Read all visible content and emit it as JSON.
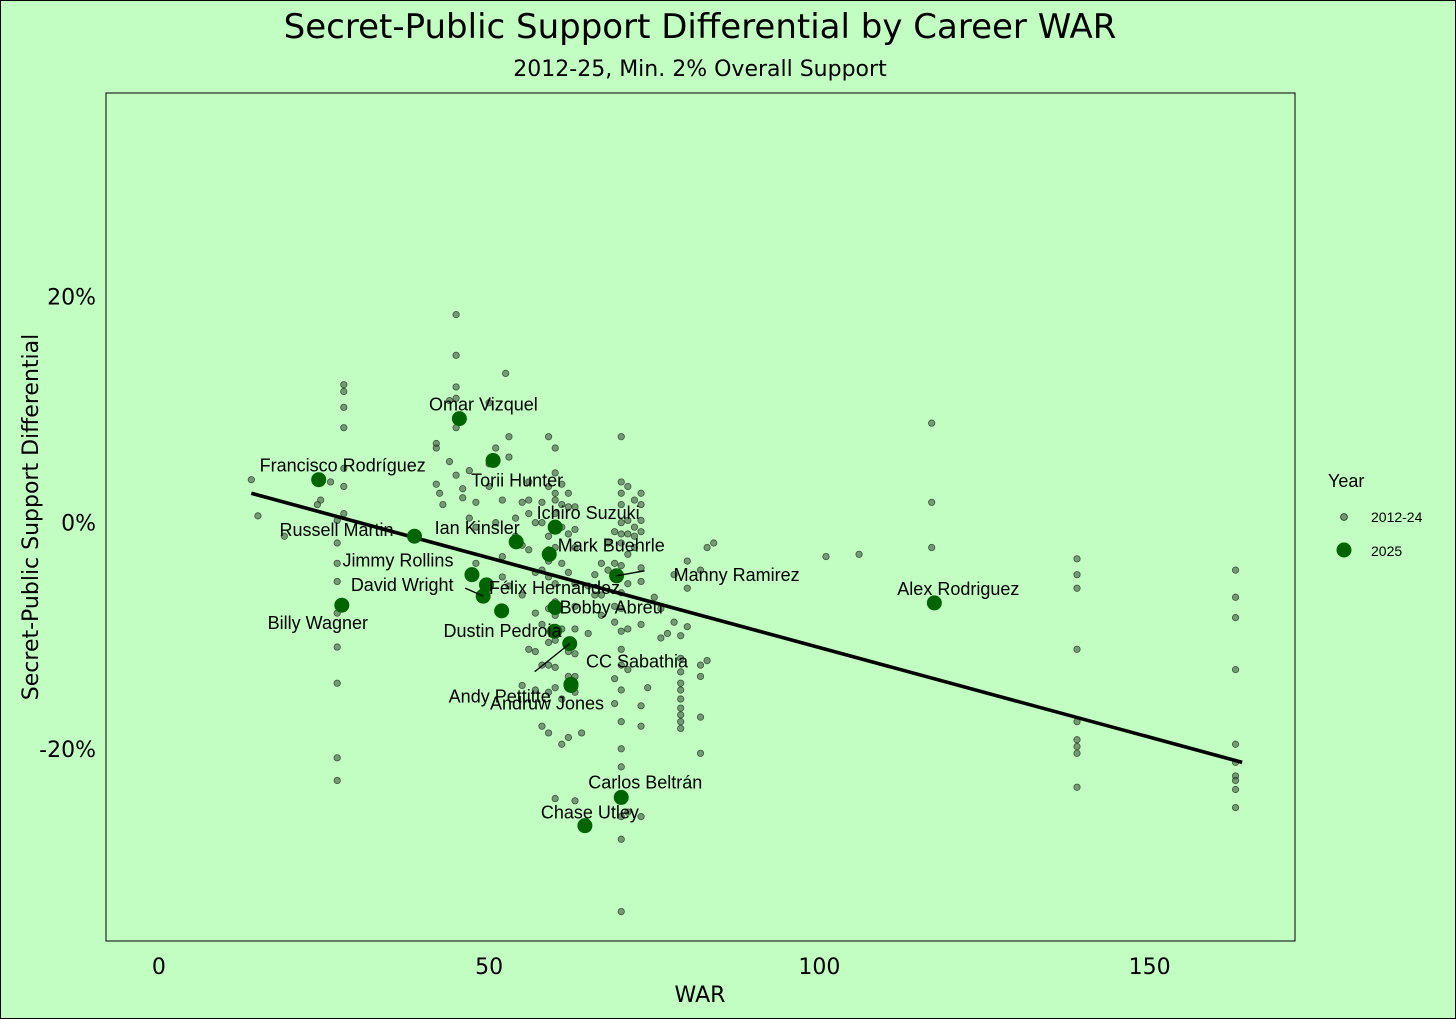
{
  "chart_data": {
    "type": "scatter",
    "title": "Secret-Public Support Differential by Career WAR",
    "subtitle": "2012-25, Min. 2% Overall Support",
    "xlabel": "WAR",
    "ylabel": "Secret-Public Support Differential",
    "xlim": [
      -8,
      172
    ],
    "ylim": [
      -37,
      38
    ],
    "x_ticks": [
      0,
      50,
      100,
      150
    ],
    "x_tick_labels": [
      "0",
      "50",
      "100",
      "150"
    ],
    "y_ticks": [
      20,
      0,
      -20
    ],
    "y_tick_labels": [
      "20%",
      "0%",
      "-20%"
    ],
    "grid": false,
    "legend": {
      "title": "Year",
      "position": "right",
      "entries": [
        "2012-24",
        "2025"
      ]
    },
    "trend_line": {
      "x": [
        14,
        164
      ],
      "y": [
        2.6,
        -21.2
      ]
    },
    "series": [
      {
        "name": "2012-24",
        "color": "#3a5a3a",
        "points": [
          [
            14,
            3.8
          ],
          [
            15,
            0.6
          ],
          [
            19,
            -1.2
          ],
          [
            24,
            1.6
          ],
          [
            24.5,
            2
          ],
          [
            26,
            3.6
          ],
          [
            27,
            0.2
          ],
          [
            27,
            -1.8
          ],
          [
            27,
            -3.6
          ],
          [
            27,
            -5.2
          ],
          [
            27,
            -8
          ],
          [
            27,
            -11
          ],
          [
            27,
            -14.2
          ],
          [
            27,
            -20.8
          ],
          [
            27,
            -22.8
          ],
          [
            28,
            12.2
          ],
          [
            28,
            11.6
          ],
          [
            28,
            10.2
          ],
          [
            28,
            8.4
          ],
          [
            28,
            4.8
          ],
          [
            28,
            3.2
          ],
          [
            28,
            0.8
          ],
          [
            42,
            7
          ],
          [
            42,
            6.6
          ],
          [
            42,
            3.4
          ],
          [
            42.5,
            2.6
          ],
          [
            43,
            1.6
          ],
          [
            44,
            10.8
          ],
          [
            44,
            5.4
          ],
          [
            45,
            18.4
          ],
          [
            45,
            14.8
          ],
          [
            45,
            12
          ],
          [
            45,
            11
          ],
          [
            45,
            8.4
          ],
          [
            45,
            4.2
          ],
          [
            46,
            3
          ],
          [
            46,
            2.2
          ],
          [
            47,
            0.4
          ],
          [
            47,
            4.6
          ],
          [
            48,
            1.8
          ],
          [
            48,
            -0.4
          ],
          [
            48,
            -3.6
          ],
          [
            50,
            10.6
          ],
          [
            50,
            5.2
          ],
          [
            50,
            3.2
          ],
          [
            51,
            6.6
          ],
          [
            51,
            0
          ],
          [
            52,
            2
          ],
          [
            52,
            -3
          ],
          [
            52,
            -4.8
          ],
          [
            52.5,
            13.2
          ],
          [
            53,
            7.6
          ],
          [
            53,
            5.8
          ],
          [
            53,
            -5.6
          ],
          [
            54,
            0.4
          ],
          [
            54,
            -1.2
          ],
          [
            55,
            1.8
          ],
          [
            55,
            -2
          ],
          [
            55,
            -6.4
          ],
          [
            55,
            -14.4
          ],
          [
            56,
            3.6
          ],
          [
            56,
            2
          ],
          [
            56,
            0.8
          ],
          [
            56,
            -2.4
          ],
          [
            56,
            -11.2
          ],
          [
            57,
            0
          ],
          [
            57,
            -4.4
          ],
          [
            57,
            -8
          ],
          [
            57,
            -11.4
          ],
          [
            57,
            -14.8
          ],
          [
            58,
            1.8
          ],
          [
            58,
            0
          ],
          [
            58,
            -4.2
          ],
          [
            58,
            -9
          ],
          [
            58,
            -12.6
          ],
          [
            58,
            -18
          ],
          [
            59,
            7.6
          ],
          [
            59,
            3.2
          ],
          [
            59,
            -1.2
          ],
          [
            59,
            -2.4
          ],
          [
            59,
            -3.4
          ],
          [
            59,
            -4.8
          ],
          [
            59,
            -7.6
          ],
          [
            59,
            -10.6
          ],
          [
            59,
            -12.6
          ],
          [
            59,
            -15
          ],
          [
            59,
            -18.6
          ],
          [
            60,
            6.6
          ],
          [
            60,
            4.4
          ],
          [
            60,
            2.6
          ],
          [
            60,
            2
          ],
          [
            60,
            0.8
          ],
          [
            60,
            -2.2
          ],
          [
            60,
            -5.4
          ],
          [
            60,
            -7
          ],
          [
            60,
            -8.2
          ],
          [
            60,
            -10.4
          ],
          [
            60,
            -12.8
          ],
          [
            60,
            -14.6
          ],
          [
            60,
            -24.4
          ],
          [
            61,
            3.4
          ],
          [
            61,
            1.6
          ],
          [
            61,
            -0.4
          ],
          [
            61,
            -3.6
          ],
          [
            61,
            -9.4
          ],
          [
            61,
            -15.6
          ],
          [
            61,
            -19.6
          ],
          [
            62,
            2.6
          ],
          [
            62,
            1.4
          ],
          [
            62,
            -1
          ],
          [
            62,
            -4.4
          ],
          [
            62,
            -11.4
          ],
          [
            62,
            -13.6
          ],
          [
            62,
            -19
          ],
          [
            63,
            1.4
          ],
          [
            63,
            -0.6
          ],
          [
            63,
            -2.2
          ],
          [
            63,
            -5.4
          ],
          [
            63,
            -7.4
          ],
          [
            63,
            -9.4
          ],
          [
            63,
            -11.6
          ],
          [
            63,
            -13.6
          ],
          [
            63,
            -15
          ],
          [
            63,
            -24.6
          ],
          [
            64,
            -18.6
          ],
          [
            65,
            -5.6
          ],
          [
            65,
            -9.8
          ],
          [
            66,
            -4.6
          ],
          [
            66,
            -6.4
          ],
          [
            67,
            -3.6
          ],
          [
            67,
            -6.4
          ],
          [
            67,
            -8.2
          ],
          [
            68,
            -1.8
          ],
          [
            68,
            -4.2
          ],
          [
            69,
            -0.8
          ],
          [
            69,
            -3.6
          ],
          [
            69,
            -7.4
          ],
          [
            69,
            -8.8
          ],
          [
            69,
            -13.8
          ],
          [
            69,
            -16
          ],
          [
            70,
            7.6
          ],
          [
            70,
            3.6
          ],
          [
            70,
            2.6
          ],
          [
            70,
            1.6
          ],
          [
            70,
            0
          ],
          [
            70,
            -1
          ],
          [
            70,
            -1.8
          ],
          [
            70,
            -3.8
          ],
          [
            70,
            -6.2
          ],
          [
            70,
            -7.6
          ],
          [
            70,
            -9.6
          ],
          [
            70,
            -11.2
          ],
          [
            70,
            -12.6
          ],
          [
            70,
            -14.8
          ],
          [
            70,
            -17.6
          ],
          [
            70,
            -20
          ],
          [
            70,
            -21.6
          ],
          [
            70,
            -26
          ],
          [
            70,
            -28
          ],
          [
            70,
            -34.4
          ],
          [
            71,
            3.2
          ],
          [
            71,
            0.2
          ],
          [
            71,
            -1
          ],
          [
            71,
            -2.8
          ],
          [
            71,
            -5.4
          ],
          [
            71,
            -9.4
          ],
          [
            71,
            -13
          ],
          [
            71,
            -25.6
          ],
          [
            72,
            2
          ],
          [
            72,
            -0.4
          ],
          [
            72,
            -1.2
          ],
          [
            72,
            -2.2
          ],
          [
            73,
            2.6
          ],
          [
            73,
            1.6
          ],
          [
            73,
            0.2
          ],
          [
            73,
            -0.8
          ],
          [
            73,
            -4
          ],
          [
            73,
            -5.2
          ],
          [
            73,
            -9
          ],
          [
            73,
            -16.2
          ],
          [
            73,
            -18
          ],
          [
            73,
            -26
          ],
          [
            74,
            -14.6
          ],
          [
            75,
            -6.6
          ],
          [
            76,
            -7.6
          ],
          [
            76,
            -10.2
          ],
          [
            77,
            -9.8
          ],
          [
            78,
            -4.6
          ],
          [
            78,
            -8.8
          ],
          [
            79,
            -10
          ],
          [
            79,
            -12
          ],
          [
            79,
            -13.2
          ],
          [
            79,
            -14.2
          ],
          [
            79,
            -14.8
          ],
          [
            79,
            -15.6
          ],
          [
            79,
            -16.4
          ],
          [
            79,
            -17
          ],
          [
            79,
            -17.6
          ],
          [
            79,
            -18.2
          ],
          [
            80,
            -3.4
          ],
          [
            80,
            -5.8
          ],
          [
            80,
            -9.2
          ],
          [
            82,
            -4.2
          ],
          [
            82,
            -12.6
          ],
          [
            82,
            -13.6
          ],
          [
            82,
            -17.2
          ],
          [
            82,
            -20.4
          ],
          [
            83,
            -2.2
          ],
          [
            83,
            -12.2
          ],
          [
            84,
            -1.8
          ],
          [
            101,
            -3
          ],
          [
            106,
            -2.8
          ],
          [
            117,
            8.8
          ],
          [
            117,
            1.8
          ],
          [
            117,
            -2.2
          ],
          [
            139,
            -3.2
          ],
          [
            139,
            -4.6
          ],
          [
            139,
            -5.8
          ],
          [
            139,
            -11.2
          ],
          [
            139,
            -17.6
          ],
          [
            139,
            -19.2
          ],
          [
            139,
            -19.8
          ],
          [
            139,
            -20.4
          ],
          [
            139,
            -23.4
          ],
          [
            163,
            -4.2
          ],
          [
            163,
            -6.6
          ],
          [
            163,
            -8.4
          ],
          [
            163,
            -13
          ],
          [
            163,
            -19.6
          ],
          [
            163,
            -21.2
          ],
          [
            163,
            -22.4
          ],
          [
            163,
            -22.8
          ],
          [
            163,
            -23.6
          ],
          [
            163,
            -25.2
          ]
        ]
      },
      {
        "name": "2025",
        "color": "#006400",
        "points": [
          {
            "label": "Omar Vizquel",
            "x": 45.5,
            "y": 9.2
          },
          {
            "label": "Francisco Rodríguez",
            "x": 24.2,
            "y": 3.8
          },
          {
            "label": "Torii Hunter",
            "x": 50.6,
            "y": 5.5
          },
          {
            "label": "Ichiro Suzuki",
            "x": 60,
            "y": -0.4
          },
          {
            "label": "Russell Martin",
            "x": 38.7,
            "y": -1.2
          },
          {
            "label": "Ian Kinsler",
            "x": 54.1,
            "y": -1.7
          },
          {
            "label": "Mark Buehrle",
            "x": 59.1,
            "y": -2.8
          },
          {
            "label": "Jimmy Rollins",
            "x": 47.4,
            "y": -4.6
          },
          {
            "label": "Félix Hernández",
            "x": 49.6,
            "y": -5.5
          },
          {
            "label": "Manny Ramirez",
            "x": 69.3,
            "y": -4.7
          },
          {
            "label": "David Wright",
            "x": 49.1,
            "y": -6.5
          },
          {
            "label": "Billy Wagner",
            "x": 27.7,
            "y": -7.3
          },
          {
            "label": "Bobby Abreu",
            "x": 60,
            "y": -7.5
          },
          {
            "label": "Alex Rodriguez",
            "x": 117.4,
            "y": -7.1
          },
          {
            "label": "",
            "x": 51.9,
            "y": -7.8
          },
          {
            "label": "Dustin Pedroia",
            "x": 59.9,
            "y": -9.6
          },
          {
            "label": "Andy Pettitte",
            "x": 62.2,
            "y": -10.7
          },
          {
            "label": "CC Sabathia",
            "x": 62.4,
            "y": -14.3
          },
          {
            "label": "Andruw Jones",
            "x": 62.4,
            "y": -14.4
          },
          {
            "label": "Carlos Beltrán",
            "x": 70,
            "y": -24.3
          },
          {
            "label": "Chase Utley",
            "x": 64.5,
            "y": -26.8
          }
        ]
      }
    ]
  }
}
